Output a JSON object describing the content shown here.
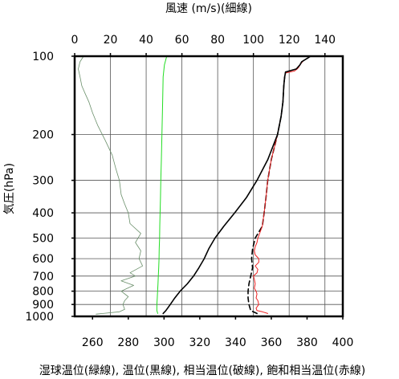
{
  "chart_data": {
    "type": "line",
    "top_axis_label": "風速 (m/s)(細線)",
    "bottom_axis_label": "湿球温位(緑線), 温位(黒線), 相当温位(破線), 飽和相当温位(赤線)",
    "ylabel": "気圧(hPa)",
    "y_scale": "log",
    "y_inverted": true,
    "ylim": [
      1000,
      100
    ],
    "y_ticks": [
      100,
      200,
      300,
      400,
      500,
      600,
      700,
      800,
      900,
      1000
    ],
    "x_bottom_lim": [
      250,
      400
    ],
    "x_bottom_ticks": [
      260,
      280,
      300,
      320,
      340,
      360,
      380,
      400
    ],
    "x_top_lim": [
      0,
      150
    ],
    "x_top_ticks": [
      0,
      20,
      40,
      60,
      80,
      100,
      120,
      140
    ],
    "grid": true,
    "colors": {
      "wind_speed": "#6a8f6a",
      "wet_bulb_theta": "#22dd22",
      "theta": "#000000",
      "theta_e": "#000000",
      "theta_es": "#ee2222"
    },
    "series": [
      {
        "key": "wind_speed",
        "axis": "top",
        "p": [
          980,
          960,
          940,
          900,
          870,
          840,
          800,
          760,
          730,
          700,
          680,
          640,
          600,
          560,
          520,
          480,
          440,
          400,
          370,
          340,
          300,
          270,
          240,
          210,
          185,
          165,
          150,
          140,
          130,
          120,
          112,
          105,
          100
        ],
        "x": [
          12,
          25,
          28,
          27,
          28,
          30,
          26,
          33,
          26,
          34,
          31,
          38,
          36,
          37,
          34,
          37,
          31,
          30,
          28,
          26,
          25,
          23,
          21,
          17,
          13,
          10,
          8,
          6,
          4,
          3,
          2,
          3,
          5
        ]
      },
      {
        "key": "wet_bulb_theta",
        "axis": "bottom",
        "p": [
          975,
          950,
          900,
          850,
          800,
          750,
          700,
          650,
          600,
          550,
          500,
          450,
          400,
          350,
          300,
          250,
          200,
          150,
          120,
          108,
          100
        ],
        "x": [
          296.5,
          296,
          296,
          296.2,
          296.4,
          296.6,
          296.8,
          297,
          297.2,
          297.3,
          297.5,
          297.6,
          297.8,
          298,
          298.2,
          298.5,
          298.8,
          299.2,
          299.5,
          300.2,
          301.5
        ]
      },
      {
        "key": "theta",
        "axis": "bottom",
        "p": [
          975,
          950,
          900,
          850,
          800,
          750,
          700,
          650,
          600,
          550,
          500,
          450,
          400,
          350,
          300,
          250,
          200,
          170,
          150,
          130,
          120,
          115,
          112,
          110,
          108,
          105,
          102,
          100
        ],
        "x": [
          299.5,
          301,
          303.5,
          306,
          309,
          313,
          316.5,
          319.5,
          322.5,
          325,
          328.5,
          333.5,
          339.5,
          346,
          352,
          358,
          363.5,
          365.5,
          366.5,
          367,
          367.5,
          368,
          374,
          375,
          376,
          377,
          380,
          382
        ]
      },
      {
        "key": "theta_e",
        "axis": "bottom",
        "p": [
          975,
          950,
          900,
          850,
          800,
          750,
          700,
          650,
          600,
          550,
          500,
          450,
          400,
          350,
          300,
          250,
          200,
          170,
          150,
          130,
          120,
          115
        ],
        "x": [
          352,
          348.5,
          347.5,
          347,
          347,
          347.5,
          348.5,
          349.5,
          349,
          349.5,
          351,
          355,
          356,
          357,
          358,
          360,
          363.5,
          365.5,
          366.5,
          367,
          367.5,
          368
        ]
      },
      {
        "key": "theta_es",
        "axis": "bottom",
        "p": [
          975,
          960,
          950,
          930,
          900,
          870,
          850,
          820,
          800,
          780,
          750,
          720,
          700,
          680,
          660,
          640,
          620,
          600,
          580,
          560,
          540,
          520,
          500,
          450,
          400,
          350,
          300,
          250,
          200,
          170,
          150,
          130,
          120,
          116,
          114,
          112,
          110,
          108,
          106,
          104,
          102,
          100
        ],
        "x": [
          358,
          355,
          352,
          351.5,
          353,
          352.5,
          351.5,
          352,
          351.5,
          350.5,
          351,
          350.5,
          350,
          352,
          352.5,
          351,
          353,
          353,
          351,
          350.5,
          351,
          352,
          352.5,
          355,
          356,
          357,
          358,
          360,
          363.5,
          365.5,
          366.5,
          367,
          367.5,
          368,
          373,
          374.5,
          375.5,
          376,
          377,
          378,
          380,
          382
        ]
      }
    ]
  }
}
